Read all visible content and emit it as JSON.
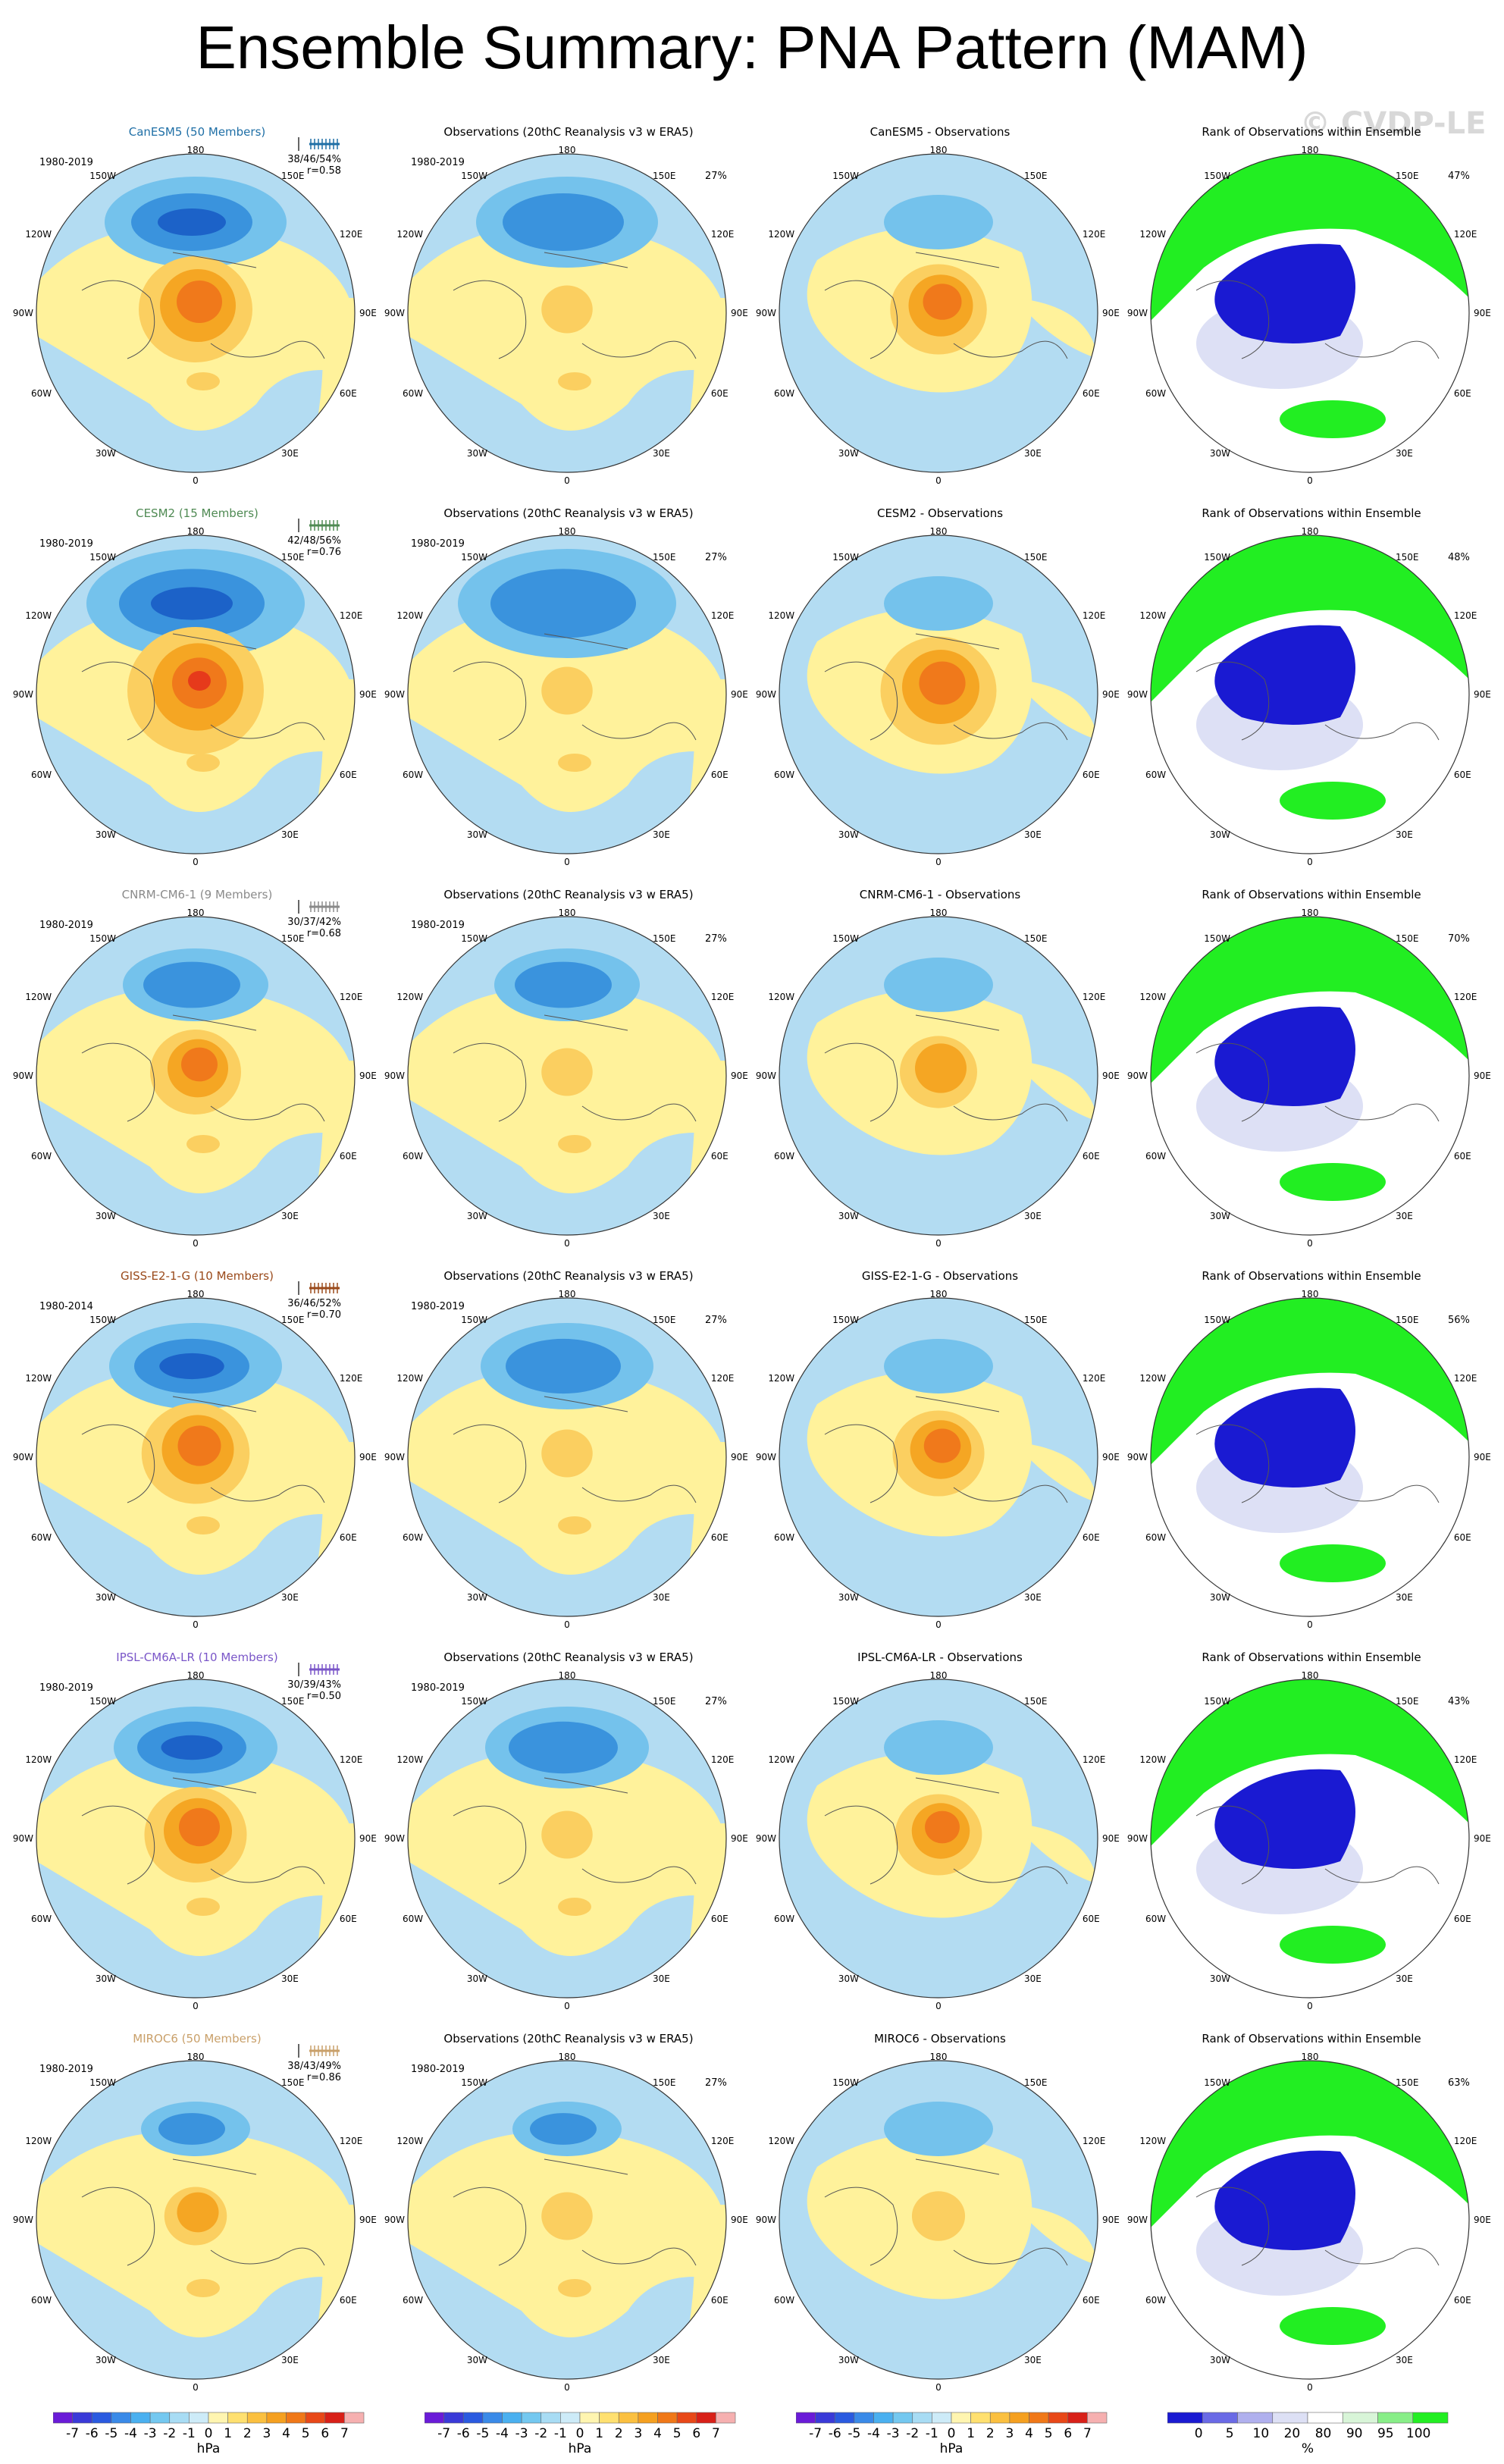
{
  "title": "Ensemble Summary: PNA Pattern (MAM)",
  "watermark": "© CVDP-LE",
  "colors": {
    "blue_light": "#b3dcf2",
    "yellow": "#fff29b",
    "orange_light": "#fbcf60",
    "orange": "#f5a623",
    "orange_dark": "#f0791b",
    "red": "#e63a1b",
    "blue_mid": "#74c2ec",
    "blue_dark": "#3a93dd",
    "blue_deep": "#1c62c8",
    "rank_green": "#22ee22",
    "rank_blue": "#1a1ad2",
    "rank_light": "#dde0f5"
  },
  "lon_labels": {
    "top": "180",
    "bottom": "0",
    "ul": "150W",
    "ur": "150E",
    "ul2": "120W",
    "ur2": "120E",
    "l": "90W",
    "r": "90E",
    "ll2": "60W",
    "lr2": "60E",
    "ll": "30W",
    "lr": "30E"
  },
  "obs_title": "Observations (20thC Reanalysis v3 w ERA5)",
  "rank_title": "Rank of Observations within Ensemble",
  "rows": [
    {
      "model": "CanESM5 (50 Members)",
      "model_color": "#1f6fa6",
      "years": "1980-2019",
      "stats": "38/46/54%",
      "r": "r=0.58",
      "obs_years": "1980-2019",
      "obs_pct": "27%",
      "diff_title": "CanESM5 - Observations",
      "rank_pct": "47%",
      "mag": 1.0
    },
    {
      "model": "CESM2 (15 Members)",
      "model_color": "#4f8a53",
      "years": "1980-2019",
      "stats": "42/48/56%",
      "r": "r=0.76",
      "obs_years": "1980-2019",
      "obs_pct": "27%",
      "diff_title": "CESM2 - Observations",
      "rank_pct": "48%",
      "mag": 1.2
    },
    {
      "model": "CNRM-CM6-1 (9 Members)",
      "model_color": "#8a8a8a",
      "years": "1980-2019",
      "stats": "30/37/42%",
      "r": "r=0.68",
      "obs_years": "1980-2019",
      "obs_pct": "27%",
      "diff_title": "CNRM-CM6-1 - Observations",
      "rank_pct": "70%",
      "mag": 0.8
    },
    {
      "model": "GISS-E2-1-G (10 Members)",
      "model_color": "#9a4a1b",
      "years": "1980-2014",
      "stats": "36/46/52%",
      "r": "r=0.70",
      "obs_years": "1980-2019",
      "obs_pct": "27%",
      "diff_title": "GISS-E2-1-G - Observations",
      "rank_pct": "56%",
      "mag": 0.95
    },
    {
      "model": "IPSL-CM6A-LR (10 Members)",
      "model_color": "#7a56c8",
      "years": "1980-2019",
      "stats": "30/39/43%",
      "r": "r=0.50",
      "obs_years": "1980-2019",
      "obs_pct": "27%",
      "diff_title": "IPSL-CM6A-LR - Observations",
      "rank_pct": "43%",
      "mag": 0.9
    },
    {
      "model": "MIROC6 (50 Members)",
      "model_color": "#c9a06a",
      "years": "1980-2019",
      "stats": "38/43/49%",
      "r": "r=0.86",
      "obs_years": "1980-2019",
      "obs_pct": "27%",
      "diff_title": "MIROC6 - Observations",
      "rank_pct": "63%",
      "mag": 0.55
    }
  ],
  "colorbar_hpa": {
    "labels": [
      "-7",
      "-6",
      "-5",
      "-4",
      "-3",
      "-2",
      "-1",
      "0",
      "1",
      "2",
      "3",
      "4",
      "5",
      "6",
      "7"
    ],
    "unit": "hPa",
    "colors": [
      "#6a1bd8",
      "#3a3ad8",
      "#2a5ae0",
      "#3a8ae8",
      "#4ab0f0",
      "#74c8f0",
      "#a8dcf4",
      "#cdebf8",
      "#fff5b0",
      "#ffe070",
      "#fbc040",
      "#f5a020",
      "#f07818",
      "#e84818",
      "#d82018",
      "#f6b0b0"
    ]
  },
  "colorbar_rank": {
    "labels": [
      "0",
      "5",
      "10",
      "20",
      "80",
      "90",
      "95",
      "100"
    ],
    "unit": "%",
    "colors": [
      "#1a1ad2",
      "#6a6ae6",
      "#b0b0ee",
      "#dde0f5",
      "#ffffff",
      "#d8f5d8",
      "#88ee88",
      "#22ee22"
    ]
  }
}
